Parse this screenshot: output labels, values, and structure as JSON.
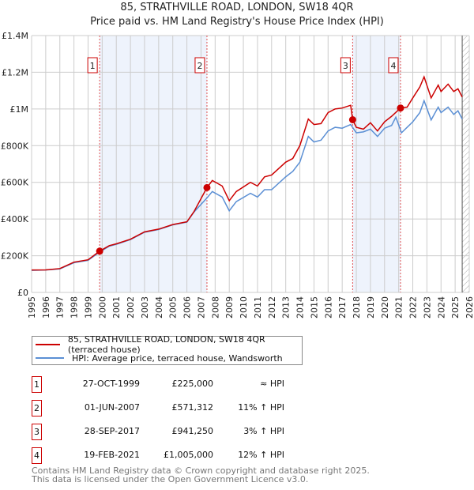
{
  "chart_data": {
    "type": "line",
    "title": "85, STRATHVILLE ROAD, LONDON, SW18 4QR",
    "subtitle": "Price paid vs. HM Land Registry's House Price Index (HPI)",
    "xlim": [
      1995,
      2026
    ],
    "ylim": [
      0,
      1400000
    ],
    "yticks": [
      {
        "v": 0,
        "label": "£0"
      },
      {
        "v": 200000,
        "label": "£200K"
      },
      {
        "v": 400000,
        "label": "£400K"
      },
      {
        "v": 600000,
        "label": "£600K"
      },
      {
        "v": 800000,
        "label": "£800K"
      },
      {
        "v": 1000000,
        "label": "£1M"
      },
      {
        "v": 1200000,
        "label": "£1.2M"
      },
      {
        "v": 1400000,
        "label": "£1.4M"
      }
    ],
    "xticks": [
      "1995",
      "1996",
      "1997",
      "1998",
      "1999",
      "2000",
      "2001",
      "2002",
      "2003",
      "2004",
      "2005",
      "2006",
      "2007",
      "2008",
      "2009",
      "2010",
      "2011",
      "2012",
      "2013",
      "2014",
      "2015",
      "2016",
      "2017",
      "2018",
      "2019",
      "2020",
      "2021",
      "2022",
      "2023",
      "2024",
      "2025",
      "2026"
    ],
    "shaded_ranges": [
      [
        1999.82,
        2007.42
      ],
      [
        2017.74,
        2021.13
      ]
    ],
    "hatched_from": 2025.5,
    "series": [
      {
        "name": "85, STRATHVILLE ROAD, LONDON, SW18 4QR (terraced house)",
        "color": "#cc0000",
        "x": [
          1995,
          1996,
          1997,
          1998,
          1999,
          1999.82,
          2000.5,
          2001,
          2002,
          2003,
          2004,
          2005,
          2006,
          2006.5,
          2007.42,
          2007.8,
          2008.5,
          2009,
          2009.5,
          2010.5,
          2011,
          2011.5,
          2012,
          2013,
          2013.5,
          2014,
          2014.6,
          2015,
          2015.5,
          2016,
          2016.5,
          2017,
          2017.6,
          2017.74,
          2018,
          2018.5,
          2019,
          2019.5,
          2020,
          2020.5,
          2021.13,
          2021.6,
          2022,
          2022.5,
          2022.8,
          2023.3,
          2023.8,
          2024,
          2024.5,
          2024.9,
          2025.2,
          2025.5
        ],
        "y": [
          122000,
          123000,
          130000,
          165000,
          178000,
          225000,
          255000,
          265000,
          290000,
          330000,
          345000,
          370000,
          385000,
          440000,
          571312,
          610000,
          580000,
          500000,
          550000,
          600000,
          580000,
          630000,
          640000,
          710000,
          730000,
          800000,
          945000,
          915000,
          920000,
          980000,
          1000000,
          1005000,
          1020000,
          941250,
          900000,
          890000,
          925000,
          880000,
          930000,
          960000,
          1005000,
          1010000,
          1060000,
          1120000,
          1175000,
          1060000,
          1130000,
          1095000,
          1135000,
          1095000,
          1110000,
          1065000
        ]
      },
      {
        "name": "HPI: Average price, terraced house, Wandsworth",
        "color": "#5b8fd4",
        "x": [
          1995,
          1996,
          1997,
          1998,
          1999,
          1999.82,
          2000.5,
          2001,
          2002,
          2003,
          2004,
          2005,
          2006,
          2006.5,
          2007.42,
          2007.8,
          2008.5,
          2009,
          2009.5,
          2010.5,
          2011,
          2011.5,
          2012,
          2013,
          2013.5,
          2014,
          2014.6,
          2015,
          2015.5,
          2016,
          2016.5,
          2017,
          2017.6,
          2018,
          2018.5,
          2019,
          2019.5,
          2020,
          2020.5,
          2020.8,
          2021.2,
          2021.6,
          2022,
          2022.5,
          2022.8,
          2023.3,
          2023.8,
          2024,
          2024.5,
          2024.9,
          2025.2,
          2025.5
        ],
        "y": [
          120000,
          122000,
          128000,
          162000,
          175000,
          220000,
          252000,
          262000,
          288000,
          328000,
          343000,
          368000,
          383000,
          438000,
          515000,
          550000,
          520000,
          445000,
          495000,
          540000,
          520000,
          560000,
          560000,
          630000,
          660000,
          710000,
          850000,
          820000,
          830000,
          880000,
          900000,
          895000,
          915000,
          870000,
          875000,
          890000,
          850000,
          895000,
          910000,
          955000,
          870000,
          900000,
          930000,
          980000,
          1045000,
          940000,
          1010000,
          980000,
          1010000,
          970000,
          990000,
          945000
        ]
      }
    ],
    "sales": [
      {
        "n": "1",
        "x": 1999.82,
        "y": 225000
      },
      {
        "n": "2",
        "x": 2007.42,
        "y": 571312
      },
      {
        "n": "3",
        "x": 2017.74,
        "y": 941250
      },
      {
        "n": "4",
        "x": 2021.13,
        "y": 1005000
      }
    ]
  },
  "legend": {
    "red": "85, STRATHVILLE ROAD, LONDON, SW18 4QR (terraced house)",
    "blue": "HPI: Average price, terraced house, Wandsworth"
  },
  "table": [
    {
      "n": "1",
      "date": "27-OCT-1999",
      "price": "£225,000",
      "hpi": "≈ HPI"
    },
    {
      "n": "2",
      "date": "01-JUN-2007",
      "price": "£571,312",
      "hpi": "11% ↑ HPI"
    },
    {
      "n": "3",
      "date": "28-SEP-2017",
      "price": "£941,250",
      "hpi": "3% ↑ HPI"
    },
    {
      "n": "4",
      "date": "19-FEB-2021",
      "price": "£1,005,000",
      "hpi": "12% ↑ HPI"
    }
  ],
  "footer": {
    "line1": "Contains HM Land Registry data © Crown copyright and database right 2025.",
    "line2": "This data is licensed under the Open Government Licence v3.0."
  }
}
